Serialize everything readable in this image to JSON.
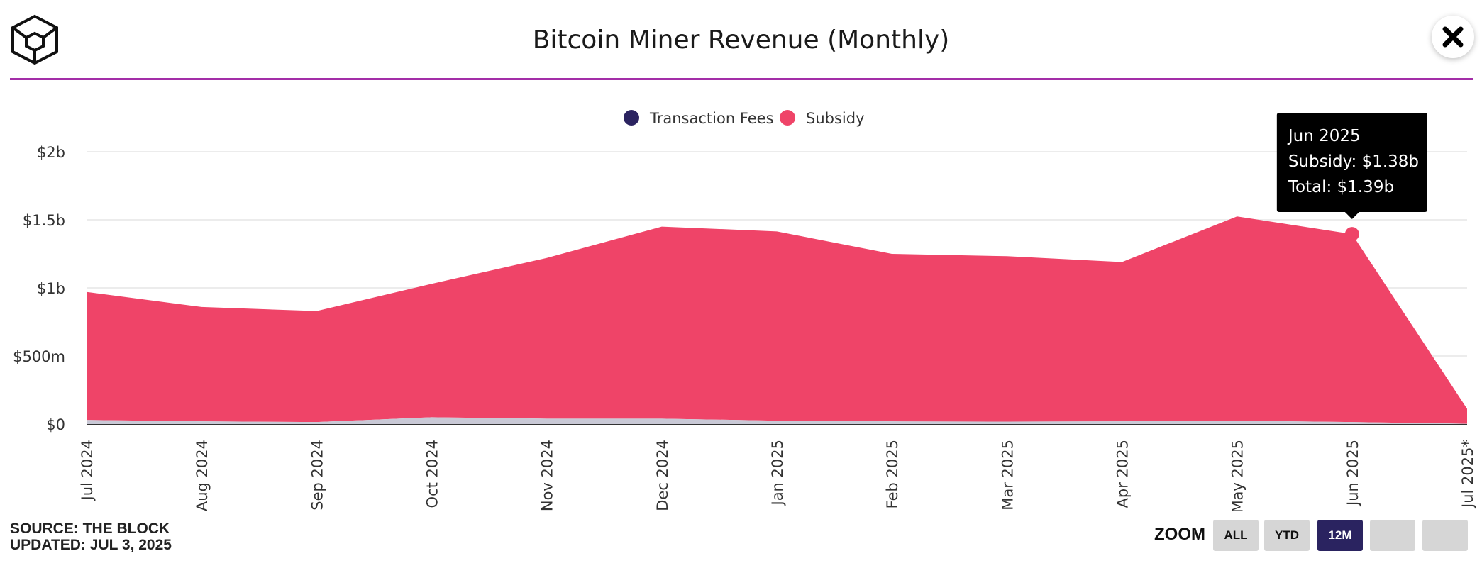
{
  "title": "Bitcoin Miner Revenue (Monthly)",
  "footer": {
    "source": "SOURCE: THE BLOCK",
    "updated": "UPDATED: JUL 3, 2025"
  },
  "zoom": {
    "label": "ZOOM",
    "buttons": [
      "ALL",
      "YTD",
      "12M",
      "",
      ""
    ],
    "active": "12M"
  },
  "tooltip": {
    "title": "Jun 2025",
    "line1": "Subsidy: $1.38b",
    "line2": "Total: $1.39b"
  },
  "colors": {
    "subsidy": "#ef4468",
    "transaction_fees": "#2b2360",
    "fees_band": "#c9c9d6",
    "divider": "#a32ea8",
    "tooltip_bg": "#000000"
  },
  "chart_data": {
    "type": "area",
    "stacked": true,
    "categories": [
      "Jul 2024",
      "Aug 2024",
      "Sep 2024",
      "Oct 2024",
      "Nov 2024",
      "Dec 2024",
      "Jan 2025",
      "Feb 2025",
      "Mar 2025",
      "Apr 2025",
      "May 2025",
      "Jun 2025",
      "Jul 2025*"
    ],
    "series": [
      {
        "name": "Transaction Fees",
        "values": [
          0.03,
          0.02,
          0.015,
          0.05,
          0.04,
          0.04,
          0.025,
          0.02,
          0.018,
          0.02,
          0.025,
          0.015,
          0.002
        ]
      },
      {
        "name": "Subsidy",
        "values": [
          0.94,
          0.84,
          0.815,
          0.98,
          1.18,
          1.41,
          1.39,
          1.23,
          1.215,
          1.17,
          1.5,
          1.38,
          0.11
        ]
      }
    ],
    "ylim": [
      0,
      2
    ],
    "yticks": [
      {
        "value": 0,
        "label": "$0"
      },
      {
        "value": 0.5,
        "label": "$500m"
      },
      {
        "value": 1,
        "label": "$1b"
      },
      {
        "value": 1.5,
        "label": "$1.5b"
      },
      {
        "value": 2,
        "label": "$2b"
      }
    ],
    "grid": true,
    "legend_position": "top-center",
    "highlight_index": 11
  }
}
